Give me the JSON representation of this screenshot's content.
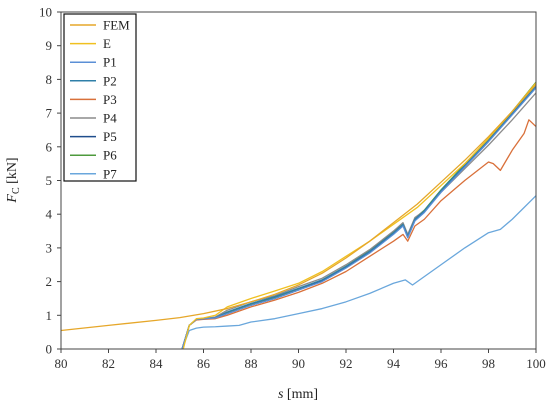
{
  "chart_data": {
    "type": "line",
    "xlabel": {
      "symbol": "s",
      "unit": "[mm]"
    },
    "ylabel": {
      "symbol": "F",
      "subscript": "C",
      "unit": "[kN]"
    },
    "xlim": [
      80,
      100
    ],
    "ylim": [
      0,
      10
    ],
    "xticks": [
      "80",
      "82",
      "84",
      "86",
      "88",
      "90",
      "92",
      "94",
      "96",
      "98",
      "100"
    ],
    "yticks": [
      "0",
      "1",
      "2",
      "3",
      "4",
      "5",
      "6",
      "7",
      "8",
      "9",
      "10"
    ],
    "legend_position": "top-left",
    "grid": false,
    "series": [
      {
        "name": "FEM",
        "color": "#e6a72a",
        "x": [
          80,
          82,
          84,
          85,
          86,
          87,
          88,
          89,
          90,
          91,
          92,
          93,
          94,
          95,
          96,
          97,
          98,
          99,
          100
        ],
        "y": [
          0.55,
          0.7,
          0.85,
          0.93,
          1.05,
          1.2,
          1.4,
          1.62,
          1.9,
          2.25,
          2.7,
          3.2,
          3.75,
          4.3,
          4.95,
          5.6,
          6.3,
          7.05,
          7.85
        ]
      },
      {
        "name": "E",
        "color": "#f0c020",
        "x": [
          85.15,
          85.4,
          85.7,
          86.0,
          86.5,
          87,
          88,
          89,
          90,
          91,
          92,
          93,
          94,
          95,
          96,
          97,
          98,
          99,
          100
        ],
        "y": [
          0,
          0.7,
          0.9,
          0.92,
          1.0,
          1.25,
          1.5,
          1.72,
          1.95,
          2.3,
          2.75,
          3.2,
          3.7,
          4.2,
          4.85,
          5.5,
          6.25,
          7.05,
          7.9
        ]
      },
      {
        "name": "P1",
        "color": "#5b8fd6",
        "x": [
          85.1,
          85.4,
          85.7,
          86,
          86.5,
          87,
          88,
          89,
          90,
          91,
          92,
          93,
          94,
          94.4,
          94.6,
          94.9,
          95.3,
          96,
          97,
          98,
          99,
          100
        ],
        "y": [
          0,
          0.7,
          0.88,
          0.9,
          0.92,
          1.05,
          1.3,
          1.5,
          1.75,
          2.0,
          2.4,
          2.85,
          3.4,
          3.65,
          3.3,
          3.8,
          4.05,
          4.65,
          5.4,
          6.15,
          6.95,
          7.75
        ]
      },
      {
        "name": "P2",
        "color": "#2f7fa8",
        "x": [
          85.1,
          85.4,
          85.7,
          86,
          86.5,
          87,
          88,
          89,
          90,
          91,
          92,
          93,
          94,
          94.4,
          94.6,
          94.9,
          95.3,
          96,
          97,
          98,
          99,
          100
        ],
        "y": [
          0,
          0.7,
          0.88,
          0.9,
          0.93,
          1.1,
          1.35,
          1.55,
          1.8,
          2.05,
          2.45,
          2.9,
          3.45,
          3.7,
          3.35,
          3.85,
          4.1,
          4.7,
          5.45,
          6.2,
          7.0,
          7.8
        ]
      },
      {
        "name": "P3",
        "color": "#d9703a",
        "x": [
          85.1,
          85.4,
          85.7,
          86,
          86.5,
          87,
          88,
          89,
          90,
          91,
          92,
          93,
          94,
          94.4,
          94.6,
          94.9,
          95.3,
          96,
          97,
          98,
          98.2,
          98.5,
          99,
          99.5,
          99.7,
          100
        ],
        "y": [
          0,
          0.7,
          0.86,
          0.88,
          0.9,
          1.0,
          1.25,
          1.45,
          1.68,
          1.95,
          2.3,
          2.75,
          3.2,
          3.4,
          3.2,
          3.65,
          3.85,
          4.4,
          5.0,
          5.55,
          5.5,
          5.3,
          5.9,
          6.4,
          6.8,
          6.6
        ]
      },
      {
        "name": "P4",
        "color": "#8c8c8c",
        "x": [
          85.1,
          85.4,
          85.7,
          86,
          86.5,
          87,
          88,
          89,
          90,
          91,
          92,
          93,
          94,
          94.4,
          94.6,
          94.9,
          95.3,
          96,
          97,
          98,
          99,
          100
        ],
        "y": [
          0,
          0.7,
          0.88,
          0.9,
          0.95,
          1.15,
          1.4,
          1.58,
          1.85,
          2.1,
          2.5,
          2.95,
          3.5,
          3.75,
          3.4,
          3.9,
          4.1,
          4.65,
          5.35,
          6.05,
          6.8,
          7.6
        ]
      },
      {
        "name": "P5",
        "color": "#1f4e8c",
        "x": [
          85.1,
          85.4,
          85.7,
          86,
          86.5,
          87,
          88,
          89,
          90,
          91,
          92,
          93,
          94,
          94.4,
          94.6,
          94.9,
          95.3,
          96,
          97,
          98,
          99,
          100
        ],
        "y": [
          0,
          0.7,
          0.87,
          0.89,
          0.92,
          1.05,
          1.3,
          1.5,
          1.75,
          2.02,
          2.42,
          2.87,
          3.42,
          3.67,
          3.32,
          3.82,
          4.07,
          4.67,
          5.42,
          6.17,
          6.97,
          7.77
        ]
      },
      {
        "name": "P6",
        "color": "#4e9a3c",
        "x": [
          85.1,
          85.4,
          85.7,
          86,
          86.5,
          87,
          88,
          89,
          90,
          91,
          92,
          93,
          94,
          94.4,
          94.6,
          94.9,
          95.3,
          96,
          97,
          98,
          99,
          100
        ],
        "y": [
          0,
          0.7,
          0.88,
          0.9,
          0.93,
          1.08,
          1.33,
          1.53,
          1.78,
          2.05,
          2.45,
          2.92,
          3.48,
          3.72,
          3.38,
          3.88,
          4.12,
          4.72,
          5.48,
          6.25,
          7.05,
          7.92
        ]
      },
      {
        "name": "P7",
        "color": "#6aa7dc",
        "x": [
          85.1,
          85.4,
          85.7,
          86,
          86.5,
          87,
          87.5,
          88,
          89,
          90,
          91,
          92,
          93,
          94,
          94.5,
          94.8,
          95.2,
          96,
          97,
          98,
          98.5,
          99,
          100
        ],
        "y": [
          0,
          0.55,
          0.62,
          0.65,
          0.66,
          0.68,
          0.7,
          0.8,
          0.9,
          1.05,
          1.2,
          1.4,
          1.65,
          1.95,
          2.05,
          1.9,
          2.1,
          2.5,
          3.0,
          3.45,
          3.55,
          3.85,
          4.55
        ]
      }
    ]
  }
}
